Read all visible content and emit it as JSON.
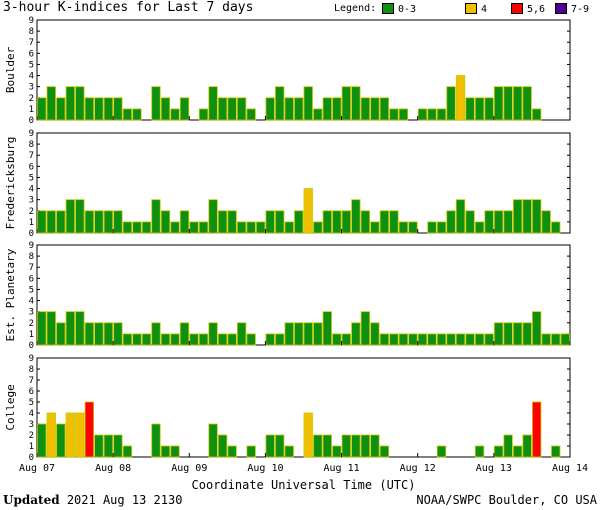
{
  "title": "3-hour K-indices for Last 7 days",
  "legend": {
    "label": "Legend:",
    "items": [
      {
        "label": "0-3",
        "color": "#109010"
      },
      {
        "label": "4",
        "color": "#f0c000"
      },
      {
        "label": "5,6",
        "color": "#ff0000"
      },
      {
        "label": "7-9",
        "color": "#500090"
      }
    ]
  },
  "footer": {
    "updated_label": "Updated",
    "updated_value": "2021 Aug 13 2130",
    "source": "NOAA/SWPC Boulder, CO USA"
  },
  "chart_data": [
    {
      "type": "bar",
      "ylabel": "Boulder",
      "ylim": [
        0,
        9
      ],
      "values": [
        2,
        3,
        2,
        3,
        3,
        2,
        2,
        2,
        2,
        1,
        1,
        0,
        3,
        2,
        1,
        2,
        0,
        1,
        3,
        2,
        2,
        2,
        1,
        0,
        2,
        3,
        2,
        2,
        3,
        1,
        2,
        2,
        3,
        3,
        2,
        2,
        2,
        1,
        1,
        0,
        1,
        1,
        1,
        3,
        4,
        2,
        2,
        2,
        3,
        3,
        3,
        3,
        1,
        0
      ]
    },
    {
      "type": "bar",
      "ylabel": "Fredericksburg",
      "ylim": [
        0,
        9
      ],
      "values": [
        2,
        2,
        2,
        3,
        3,
        2,
        2,
        2,
        2,
        1,
        1,
        1,
        3,
        2,
        1,
        2,
        1,
        1,
        3,
        2,
        2,
        1,
        1,
        1,
        2,
        2,
        1,
        2,
        4,
        1,
        2,
        2,
        2,
        3,
        2,
        1,
        2,
        2,
        1,
        1,
        0,
        1,
        1,
        2,
        3,
        2,
        1,
        2,
        2,
        2,
        3,
        3,
        3,
        2,
        1,
        0
      ]
    },
    {
      "type": "bar",
      "ylabel": "Est. Planetary",
      "ylim": [
        0,
        9
      ],
      "values": [
        3,
        3,
        2,
        3,
        3,
        2,
        2,
        2,
        2,
        1,
        1,
        1,
        2,
        1,
        1,
        2,
        1,
        1,
        2,
        1,
        1,
        2,
        1,
        0,
        1,
        1,
        2,
        2,
        2,
        2,
        3,
        1,
        1,
        2,
        3,
        2,
        1,
        1,
        1,
        1,
        1,
        1,
        1,
        1,
        1,
        1,
        1,
        1,
        2,
        2,
        2,
        2,
        3,
        1,
        1,
        1
      ]
    },
    {
      "type": "bar",
      "ylabel": "College",
      "ylim": [
        0,
        9
      ],
      "values": [
        3,
        4,
        3,
        4,
        4,
        5,
        2,
        2,
        2,
        1,
        0,
        0,
        3,
        1,
        1,
        0,
        0,
        0,
        3,
        2,
        1,
        0,
        1,
        0,
        2,
        2,
        1,
        0,
        4,
        2,
        2,
        1,
        2,
        2,
        2,
        2,
        1,
        0,
        0,
        0,
        0,
        0,
        1,
        0,
        0,
        0,
        1,
        0,
        1,
        2,
        1,
        2,
        5,
        0,
        1,
        0
      ]
    }
  ],
  "x_axis": {
    "title": "Coordinate Universal Time (UTC)",
    "tick_labels": [
      "Aug 07",
      "Aug 08",
      "Aug 09",
      "Aug 10",
      "Aug 11",
      "Aug 12",
      "Aug 13",
      "Aug 14"
    ]
  },
  "y_tick_labels": [
    "0",
    "1",
    "2",
    "3",
    "4",
    "5",
    "6",
    "7",
    "8",
    "9"
  ]
}
